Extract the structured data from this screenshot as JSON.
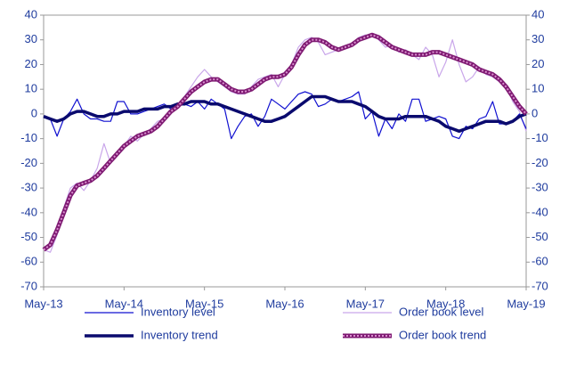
{
  "chart_data": {
    "type": "line",
    "categories": [
      "May-13",
      null,
      null,
      null,
      null,
      null,
      null,
      null,
      null,
      null,
      null,
      null,
      "May-14",
      null,
      null,
      null,
      null,
      null,
      null,
      null,
      null,
      null,
      null,
      null,
      "May-15",
      null,
      null,
      null,
      null,
      null,
      null,
      null,
      null,
      null,
      null,
      null,
      "May-16",
      null,
      null,
      null,
      null,
      null,
      null,
      null,
      null,
      null,
      null,
      null,
      "May-17",
      null,
      null,
      null,
      null,
      null,
      null,
      null,
      null,
      null,
      null,
      null,
      "May-18",
      null,
      null,
      null,
      null,
      null,
      null,
      null,
      null,
      null,
      null,
      null,
      "May-19"
    ],
    "series": [
      {
        "name": "Inventory level",
        "color": "#1010d0",
        "values": [
          -1,
          -2,
          -9,
          -2,
          1,
          6,
          0,
          -2,
          -2,
          -3,
          -3,
          5,
          5,
          0,
          0,
          1,
          2,
          3,
          4,
          2,
          3,
          4,
          3,
          5,
          2,
          6,
          4,
          2,
          -10,
          -5,
          -1,
          0,
          -5,
          -1,
          6,
          4,
          2,
          5,
          8,
          9,
          8,
          3,
          4,
          6,
          5,
          6,
          7,
          9,
          -2,
          1,
          -9,
          -2,
          -6,
          0,
          -3,
          6,
          6,
          -3,
          -2,
          -1,
          -2,
          -9,
          -10,
          -5,
          -6,
          -2,
          -1,
          5,
          -4,
          -4,
          -3,
          0,
          -6
        ]
      },
      {
        "name": "Order book level",
        "color": "#c9a6ea",
        "values": [
          -55,
          -56,
          -49,
          -38,
          -30,
          -28,
          -31,
          -27,
          -22,
          -12,
          -20,
          -15,
          -13,
          -9,
          -11,
          -8,
          -6,
          -3,
          -2,
          2,
          4,
          7,
          11,
          15,
          18,
          15,
          13,
          11,
          9,
          8,
          8,
          11,
          14,
          15,
          16,
          11,
          16,
          20,
          27,
          30,
          31,
          29,
          24,
          25,
          26,
          27,
          28,
          31,
          32,
          32,
          30,
          27,
          28,
          25,
          26,
          24,
          22,
          27,
          24,
          15,
          21,
          30,
          20,
          13,
          15,
          19,
          16,
          15,
          13,
          12,
          5,
          1,
          -7
        ]
      },
      {
        "name": "Inventory trend",
        "color": "#0a0a6e",
        "values": [
          -1,
          -2,
          -3,
          -2,
          0,
          1,
          1,
          0,
          -1,
          -1,
          0,
          0,
          1,
          1,
          1,
          2,
          2,
          2,
          3,
          3,
          4,
          4,
          5,
          5,
          5,
          4,
          4,
          3,
          2,
          1,
          0,
          -1,
          -2,
          -3,
          -3,
          -2,
          -1,
          1,
          3,
          5,
          7,
          7,
          7,
          6,
          5,
          5,
          5,
          4,
          3,
          1,
          -1,
          -2,
          -2,
          -2,
          -1,
          -1,
          -1,
          -1,
          -2,
          -3,
          -5,
          -6,
          -7,
          -6,
          -5,
          -4,
          -3,
          -3,
          -3,
          -4,
          -3,
          -1,
          0
        ]
      },
      {
        "name": "Order book trend",
        "color": "#7e1a72",
        "values": [
          -55,
          -53,
          -47,
          -40,
          -33,
          -29,
          -28,
          -27,
          -25,
          -22,
          -19,
          -16,
          -13,
          -11,
          -9,
          -8,
          -7,
          -5,
          -2,
          1,
          3,
          6,
          9,
          11,
          13,
          14,
          14,
          12,
          10,
          9,
          9,
          10,
          12,
          14,
          15,
          15,
          16,
          19,
          24,
          28,
          30,
          30,
          29,
          27,
          26,
          27,
          28,
          30,
          31,
          32,
          31,
          29,
          27,
          26,
          25,
          24,
          24,
          24,
          25,
          25,
          24,
          23,
          22,
          21,
          20,
          18,
          17,
          16,
          14,
          11,
          7,
          3,
          0
        ]
      }
    ],
    "ylim": [
      -70,
      40
    ],
    "yticks": [
      -70,
      -60,
      -50,
      -40,
      -30,
      -20,
      -10,
      0,
      10,
      20,
      30,
      40
    ],
    "y2lim": [
      -70,
      40
    ],
    "y2ticks": [
      -70,
      -60,
      -50,
      -40,
      -30,
      -20,
      -10,
      0,
      10,
      20,
      30,
      40
    ],
    "legend": "bottom"
  }
}
